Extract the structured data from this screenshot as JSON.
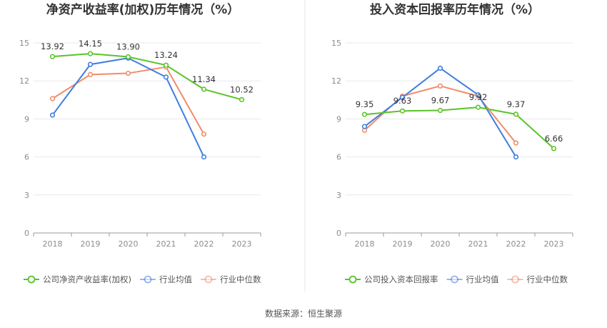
{
  "source": "数据来源：恒生聚源",
  "colors": {
    "company": "#5ac32b",
    "avg": "#3f7ee0",
    "median": "#f08c68"
  },
  "chart_data": [
    {
      "type": "line",
      "title": "净资产收益率(加权)历年情况（%）",
      "categories": [
        "2018",
        "2019",
        "2020",
        "2021",
        "2022",
        "2023"
      ],
      "ylim": [
        0,
        15
      ],
      "yticks": [
        0,
        3,
        6,
        9,
        12,
        15
      ],
      "grid": true,
      "legend_position": "bottom",
      "series": [
        {
          "name": "公司净资产收益率(加权)",
          "color_key": "company",
          "values": [
            13.92,
            14.15,
            13.9,
            13.24,
            11.34,
            10.52
          ],
          "labels": [
            "13.92",
            "14.15",
            "13.90",
            "13.24",
            "11.34",
            "10.52"
          ]
        },
        {
          "name": "行业均值",
          "color_key": "avg",
          "values": [
            9.3,
            13.3,
            13.8,
            12.3,
            6.0,
            null
          ]
        },
        {
          "name": "行业中位数",
          "color_key": "median",
          "values": [
            10.6,
            12.5,
            12.6,
            13.1,
            7.8,
            null
          ]
        }
      ]
    },
    {
      "type": "line",
      "title": "投入资本回报率历年情况（%）",
      "categories": [
        "2018",
        "2019",
        "2020",
        "2021",
        "2022",
        "2023"
      ],
      "ylim": [
        0,
        15
      ],
      "yticks": [
        0,
        3,
        6,
        9,
        12,
        15
      ],
      "grid": true,
      "legend_position": "bottom",
      "series": [
        {
          "name": "公司投入资本回报率",
          "color_key": "company",
          "values": [
            9.35,
            9.63,
            9.67,
            9.92,
            9.37,
            6.66
          ],
          "labels": [
            "9.35",
            "9.63",
            "9.67",
            "9.92",
            "9.37",
            "6.66"
          ]
        },
        {
          "name": "行业均值",
          "color_key": "avg",
          "values": [
            8.4,
            10.7,
            13.0,
            10.9,
            6.0,
            null
          ]
        },
        {
          "name": "行业中位数",
          "color_key": "median",
          "values": [
            8.1,
            10.8,
            11.6,
            10.8,
            7.1,
            null
          ]
        }
      ]
    }
  ]
}
